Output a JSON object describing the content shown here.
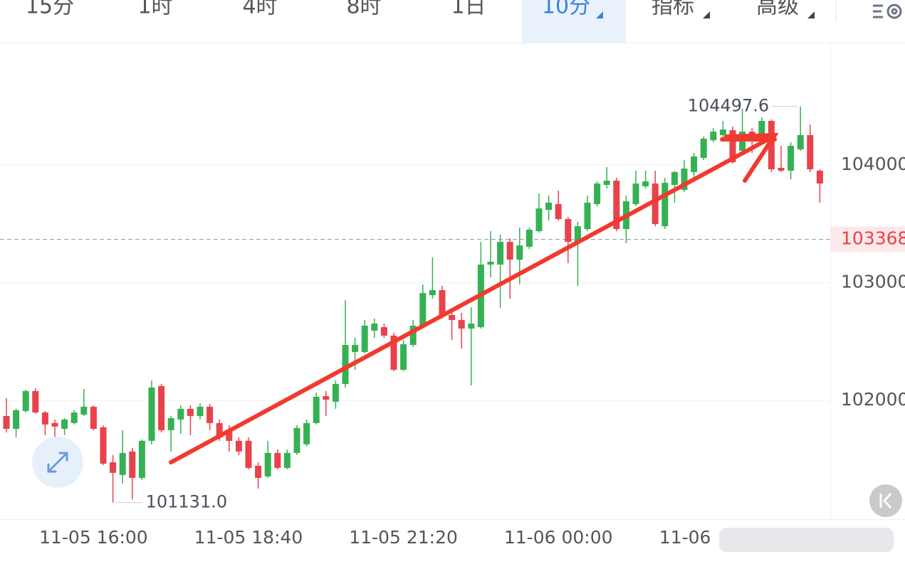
{
  "tabs": [
    "15分",
    "1时",
    "4时",
    "8时",
    "1日",
    "10分",
    "指标",
    "高级"
  ],
  "chart_data": {
    "type": "candlestick",
    "categories": [
      null,
      null,
      null,
      null,
      null,
      null,
      null,
      null,
      null,
      "11-05 16:00",
      null,
      null,
      null,
      null,
      null,
      null,
      null,
      null,
      null,
      null,
      null,
      null,
      null,
      null,
      null,
      "11-05 18:40",
      null,
      null,
      null,
      null,
      null,
      null,
      null,
      null,
      null,
      null,
      null,
      null,
      null,
      null,
      null,
      "11-05 21:20",
      null,
      null,
      null,
      null,
      null,
      null,
      null,
      null,
      null,
      null,
      null,
      null,
      null,
      null,
      null,
      "11-06 00:00",
      null,
      null,
      null,
      null,
      null,
      null,
      null,
      null,
      null,
      null,
      null,
      null,
      null,
      null,
      null,
      "11-06",
      null,
      null,
      null,
      null,
      null,
      null,
      null,
      null,
      null,
      null,
      null
    ],
    "ohlc": [
      [
        101867,
        102018,
        101728,
        101758
      ],
      [
        101758,
        101928,
        101686,
        101916
      ],
      [
        101910,
        102091,
        101897,
        102079
      ],
      [
        102079,
        102103,
        101885,
        101897
      ],
      [
        101897,
        101910,
        101704,
        101795
      ],
      [
        101807,
        101837,
        101553,
        101777
      ],
      [
        101758,
        101849,
        101704,
        101837
      ],
      [
        101807,
        101916,
        101795,
        101897
      ],
      [
        101879,
        102097,
        101867,
        101946
      ],
      [
        101946,
        101958,
        101746,
        101758
      ],
      [
        101771,
        101789,
        101450,
        101462
      ],
      [
        101474,
        101535,
        101131,
        101384
      ],
      [
        101366,
        101746,
        101293,
        101553
      ],
      [
        101565,
        101595,
        101160,
        101341
      ],
      [
        101341,
        101668,
        101323,
        101656
      ],
      [
        101656,
        102169,
        101626,
        102109
      ],
      [
        102121,
        102139,
        101728,
        101746
      ],
      [
        101746,
        101867,
        101565,
        101849
      ],
      [
        101837,
        101958,
        101716,
        101928
      ],
      [
        101928,
        101958,
        101704,
        101867
      ],
      [
        101867,
        101976,
        101837,
        101946
      ],
      [
        101946,
        101970,
        101746,
        101807
      ],
      [
        101807,
        101837,
        101656,
        101686
      ],
      [
        101746,
        101789,
        101565,
        101656
      ],
      [
        101656,
        101686,
        101535,
        101565
      ],
      [
        101656,
        101686,
        101414,
        101426
      ],
      [
        101444,
        101474,
        101251,
        101341
      ],
      [
        101354,
        101656,
        101341,
        101553
      ],
      [
        101553,
        101583,
        101414,
        101426
      ],
      [
        101426,
        101583,
        101414,
        101553
      ],
      [
        101553,
        101789,
        101535,
        101765
      ],
      [
        101626,
        101837,
        101607,
        101807
      ],
      [
        101807,
        102066,
        101795,
        102030
      ],
      [
        102036,
        102079,
        101867,
        102006
      ],
      [
        101988,
        102169,
        101928,
        102139
      ],
      [
        102139,
        102852,
        102109,
        102471
      ],
      [
        102411,
        102532,
        102260,
        102471
      ],
      [
        102411,
        102683,
        102399,
        102635
      ],
      [
        102592,
        102695,
        102532,
        102653
      ],
      [
        102622,
        102653,
        102532,
        102550
      ],
      [
        102550,
        102574,
        102248,
        102260
      ],
      [
        102260,
        102514,
        102248,
        102477
      ],
      [
        102471,
        102683,
        102453,
        102635
      ],
      [
        102635,
        102985,
        102622,
        102912
      ],
      [
        102894,
        103215,
        102864,
        102937
      ],
      [
        102937,
        102973,
        102695,
        102713
      ],
      [
        102725,
        102755,
        102514,
        102683
      ],
      [
        102683,
        102743,
        102441,
        102610
      ],
      [
        102610,
        102792,
        102127,
        102653
      ],
      [
        102622,
        103347,
        102610,
        103154
      ],
      [
        103154,
        103438,
        103045,
        103178
      ],
      [
        103154,
        103408,
        102786,
        103347
      ],
      [
        103347,
        103378,
        102864,
        103196
      ],
      [
        103196,
        103468,
        102985,
        103317
      ],
      [
        103305,
        103468,
        103287,
        103450
      ],
      [
        103438,
        103758,
        103426,
        103631
      ],
      [
        103619,
        103740,
        103529,
        103680
      ],
      [
        103668,
        103782,
        103529,
        103541
      ],
      [
        103541,
        103559,
        103166,
        103347
      ],
      [
        103347,
        103517,
        102973,
        103480
      ],
      [
        103456,
        103740,
        103438,
        103680
      ],
      [
        103668,
        103861,
        103650,
        103843
      ],
      [
        103831,
        103982,
        103801,
        103867
      ],
      [
        103867,
        103891,
        103438,
        103456
      ],
      [
        103456,
        103740,
        103335,
        103692
      ],
      [
        103668,
        103952,
        103650,
        103843
      ],
      [
        103819,
        103952,
        103801,
        103861
      ],
      [
        103843,
        103952,
        103480,
        103499
      ],
      [
        103480,
        103891,
        103456,
        103849
      ],
      [
        103831,
        103952,
        103680,
        103940
      ],
      [
        103789,
        104042,
        103770,
        103970
      ],
      [
        103940,
        104103,
        103891,
        104073
      ],
      [
        104060,
        104242,
        104042,
        104224
      ],
      [
        104211,
        104314,
        104193,
        104284
      ],
      [
        104254,
        104375,
        104224,
        104302
      ],
      [
        104296,
        104326,
        104012,
        104024
      ],
      [
        104121,
        104480,
        104103,
        104284
      ],
      [
        104284,
        104314,
        104103,
        104224
      ],
      [
        104254,
        104405,
        104224,
        104375
      ],
      [
        104375,
        104387,
        103940,
        103964
      ],
      [
        103976,
        104163,
        103940,
        103952
      ],
      [
        103952,
        104193,
        103879,
        104163
      ],
      [
        104133,
        104497.6,
        104121,
        104254
      ],
      [
        104254,
        104344,
        103940,
        103964
      ],
      [
        103952,
        103964,
        103680,
        103843
      ]
    ],
    "up_color": "#35b153",
    "down_color": "#e8424a",
    "ylim": [
      100990,
      105040
    ],
    "yticks": [
      102000,
      103000,
      104000
    ],
    "grid": true,
    "current_price": 103368,
    "high_label": "104497.6",
    "low_label": "101131.0"
  }
}
